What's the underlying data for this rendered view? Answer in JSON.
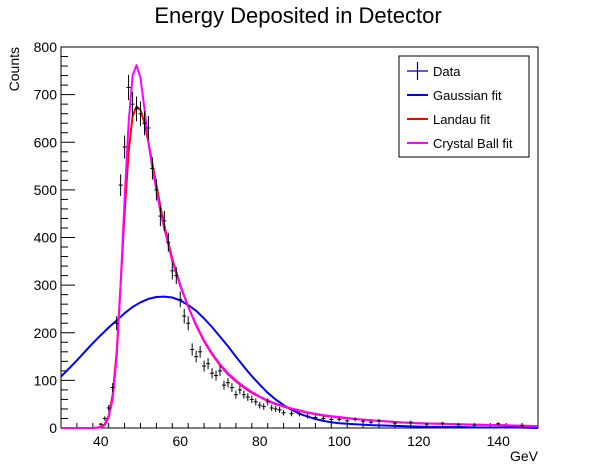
{
  "chart_data": {
    "type": "line",
    "title": "Energy Deposited in Detector",
    "xlabel": "GeV",
    "ylabel": "Counts",
    "xlim": [
      30,
      150
    ],
    "ylim": [
      0,
      800
    ],
    "x_ticks": [
      40,
      60,
      80,
      100,
      120,
      140
    ],
    "y_ticks": [
      0,
      100,
      200,
      300,
      400,
      500,
      600,
      700,
      800
    ],
    "grid": false,
    "legend_position": "top-right",
    "data": {
      "name": "Data",
      "color": "#0000aa",
      "x": [
        40,
        41,
        42,
        43,
        44,
        45,
        46,
        47,
        48,
        49,
        50,
        51,
        52,
        53,
        54,
        55,
        56,
        57,
        58,
        59,
        60,
        61,
        62,
        63,
        64,
        65,
        66,
        67,
        68,
        69,
        70,
        71,
        72,
        73,
        74,
        75,
        76,
        77,
        78,
        79,
        80,
        81,
        82,
        83,
        84,
        85,
        86,
        88,
        90,
        92,
        94,
        96,
        98,
        100,
        102,
        104,
        106,
        108,
        110,
        114,
        118,
        122,
        126,
        130,
        134,
        140,
        146
      ],
      "y": [
        8,
        20,
        42,
        85,
        220,
        510,
        590,
        715,
        680,
        670,
        660,
        640,
        630,
        545,
        500,
        445,
        435,
        390,
        330,
        320,
        270,
        235,
        220,
        165,
        150,
        160,
        130,
        135,
        115,
        110,
        120,
        90,
        95,
        85,
        70,
        80,
        70,
        65,
        60,
        55,
        48,
        45,
        55,
        42,
        40,
        38,
        32,
        30,
        30,
        25,
        22,
        20,
        18,
        18,
        15,
        18,
        14,
        12,
        15,
        10,
        12,
        8,
        10,
        7,
        6,
        9,
        5
      ]
    },
    "series": [
      {
        "name": "Gaussian fit",
        "color": "#0000ff",
        "x": [
          30,
          32,
          34,
          36,
          38,
          40,
          42,
          44,
          46,
          48,
          50,
          52,
          54,
          56,
          58,
          60,
          62,
          64,
          66,
          68,
          70,
          72,
          74,
          76,
          78,
          80,
          82,
          84,
          86,
          88,
          90,
          92,
          94,
          96,
          98,
          100,
          104,
          108,
          112,
          116,
          120,
          125,
          130,
          135,
          140,
          145,
          150
        ],
        "y": [
          108,
          125,
          142,
          160,
          178,
          195,
          211,
          226,
          241,
          254,
          264,
          271,
          275,
          276,
          274,
          268,
          258,
          246,
          230,
          212,
          192,
          172,
          150,
          129,
          109,
          91,
          74,
          60,
          48,
          38,
          30,
          24,
          19,
          15,
          12,
          10,
          8,
          6,
          5,
          4,
          3,
          2,
          2,
          1,
          1,
          1,
          0
        ]
      },
      {
        "name": "Landau fit",
        "color": "#ff0000",
        "x": [
          30,
          38,
          40,
          41,
          42,
          43,
          44,
          45,
          46,
          47,
          48,
          49,
          50,
          51,
          52,
          53,
          54,
          55,
          56,
          57,
          58,
          60,
          62,
          64,
          66,
          68,
          70,
          72,
          74,
          76,
          78,
          80,
          82,
          84,
          86,
          88,
          90,
          92,
          94,
          96,
          98,
          100,
          105,
          110,
          115,
          120,
          125,
          130,
          135,
          140,
          145,
          150
        ],
        "y": [
          0,
          0,
          2,
          8,
          25,
          70,
          160,
          300,
          450,
          580,
          655,
          675,
          668,
          640,
          600,
          555,
          510,
          465,
          425,
          390,
          355,
          300,
          255,
          215,
          182,
          155,
          132,
          113,
          98,
          85,
          74,
          65,
          57,
          50,
          45,
          40,
          36,
          32,
          29,
          26,
          24,
          22,
          18,
          15,
          12,
          10,
          9,
          8,
          7,
          6,
          5,
          4
        ]
      },
      {
        "name": "Crystal Ball fit",
        "color": "#ff00ff",
        "x": [
          30,
          38,
          40,
          41,
          42,
          43,
          44,
          45,
          46,
          47,
          48,
          49,
          50,
          51,
          52,
          53,
          54,
          55,
          56,
          57,
          58,
          60,
          62,
          64,
          66,
          68,
          70,
          72,
          74,
          76,
          78,
          80,
          82,
          84,
          86,
          88,
          90,
          92,
          94,
          96,
          98,
          100,
          105,
          110,
          115,
          120,
          125,
          130,
          135,
          140,
          145,
          150
        ],
        "y": [
          0,
          0,
          1,
          6,
          22,
          62,
          150,
          300,
          480,
          640,
          740,
          762,
          735,
          670,
          600,
          545,
          500,
          455,
          418,
          385,
          350,
          298,
          255,
          217,
          184,
          157,
          134,
          115,
          100,
          87,
          76,
          66,
          58,
          51,
          46,
          41,
          37,
          33,
          30,
          27,
          25,
          23,
          18,
          15,
          12,
          10,
          9,
          8,
          7,
          6,
          5,
          4
        ]
      }
    ]
  }
}
